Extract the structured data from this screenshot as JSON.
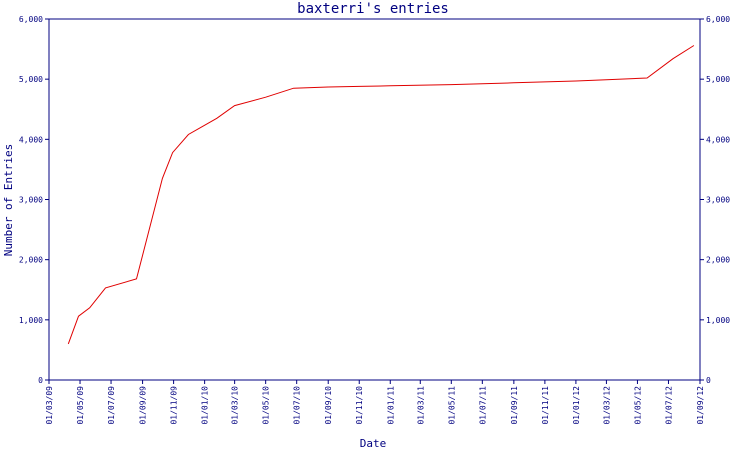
{
  "chart_data": {
    "type": "line",
    "title": "baxterri's entries",
    "xlabel": "Date",
    "ylabel": "Number of Entries",
    "ylim": [
      0,
      6000
    ],
    "xlim": [
      "2009-03-01",
      "2012-09-01"
    ],
    "grid": false,
    "legend": "none",
    "line_color": "#e00000",
    "axis_color": "#000080",
    "y_ticks": [
      {
        "value": 0,
        "label": "0"
      },
      {
        "value": 1000,
        "label": "1,000"
      },
      {
        "value": 2000,
        "label": "2,000"
      },
      {
        "value": 3000,
        "label": "3,000"
      },
      {
        "value": 4000,
        "label": "4,000"
      },
      {
        "value": 5000,
        "label": "5,000"
      },
      {
        "value": 6000,
        "label": "6,000"
      }
    ],
    "x_ticks": [
      {
        "value": "2009-03-01",
        "label": "01/03/09"
      },
      {
        "value": "2009-05-01",
        "label": "01/05/09"
      },
      {
        "value": "2009-07-01",
        "label": "01/07/09"
      },
      {
        "value": "2009-09-01",
        "label": "01/09/09"
      },
      {
        "value": "2009-11-01",
        "label": "01/11/09"
      },
      {
        "value": "2010-01-01",
        "label": "01/01/10"
      },
      {
        "value": "2010-03-01",
        "label": "01/03/10"
      },
      {
        "value": "2010-05-01",
        "label": "01/05/10"
      },
      {
        "value": "2010-07-01",
        "label": "01/07/10"
      },
      {
        "value": "2010-09-01",
        "label": "01/09/10"
      },
      {
        "value": "2010-11-01",
        "label": "01/11/10"
      },
      {
        "value": "2011-01-01",
        "label": "01/01/11"
      },
      {
        "value": "2011-03-01",
        "label": "01/03/11"
      },
      {
        "value": "2011-05-01",
        "label": "01/05/11"
      },
      {
        "value": "2011-07-01",
        "label": "01/07/11"
      },
      {
        "value": "2011-09-01",
        "label": "01/09/11"
      },
      {
        "value": "2011-11-01",
        "label": "01/11/11"
      },
      {
        "value": "2012-01-01",
        "label": "01/01/12"
      },
      {
        "value": "2012-03-01",
        "label": "01/03/12"
      },
      {
        "value": "2012-05-01",
        "label": "01/05/12"
      },
      {
        "value": "2012-07-01",
        "label": "01/07/12"
      },
      {
        "value": "2012-09-01",
        "label": "01/09/12"
      }
    ],
    "x": [
      "2009-04-08",
      "2009-04-28",
      "2009-05-20",
      "2009-06-20",
      "2009-08-20",
      "2009-10-10",
      "2009-10-30",
      "2009-11-30",
      "2010-01-25",
      "2010-03-01",
      "2010-05-01",
      "2010-06-25",
      "2010-09-01",
      "2010-11-01",
      "2011-01-01",
      "2011-05-01",
      "2011-09-01",
      "2012-01-01",
      "2012-03-01",
      "2012-05-20",
      "2012-07-10",
      "2012-08-20"
    ],
    "y": [
      600,
      1060,
      1200,
      1530,
      1680,
      3350,
      3780,
      4080,
      4350,
      4560,
      4700,
      4850,
      4870,
      4880,
      4890,
      4910,
      4940,
      4970,
      4990,
      5020,
      5340,
      5560
    ]
  }
}
